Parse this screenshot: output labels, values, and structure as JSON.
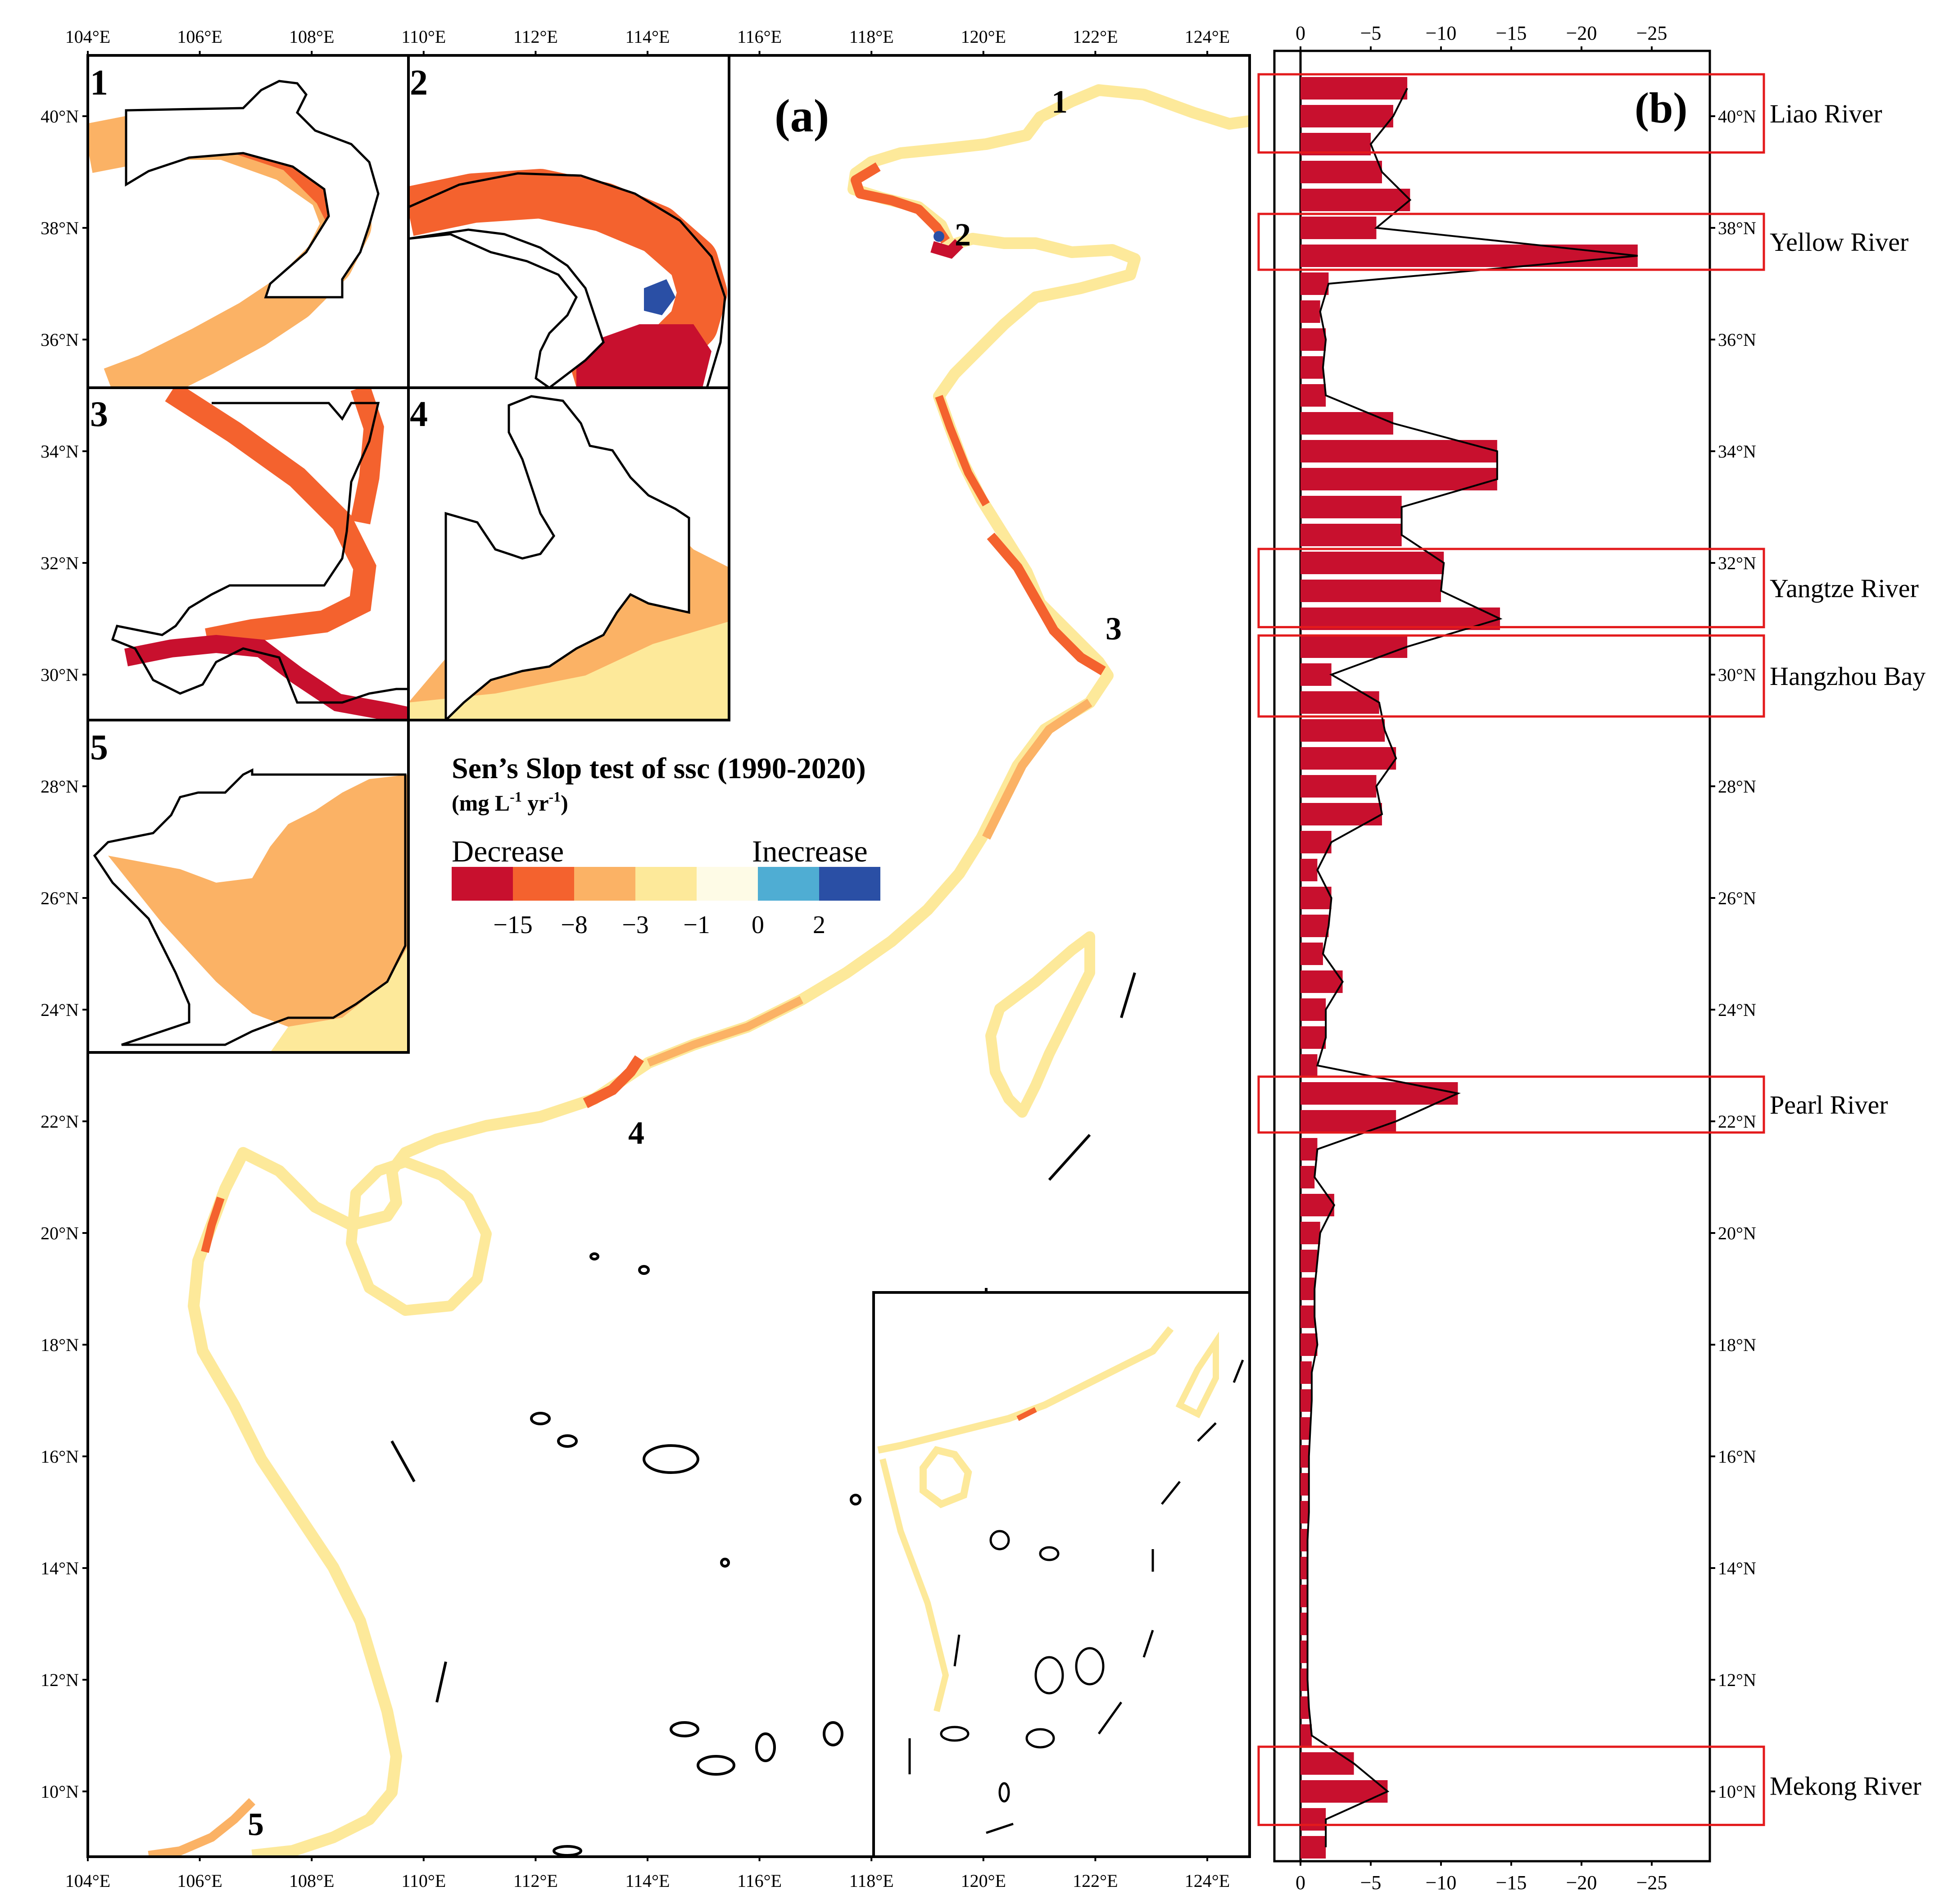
{
  "panel_a": {
    "label": "(a)",
    "lon_ticks": [
      "104°E",
      "106°E",
      "108°E",
      "110°E",
      "112°E",
      "114°E",
      "116°E",
      "118°E",
      "120°E",
      "122°E",
      "124°E"
    ],
    "lat_ticks": [
      "40°N",
      "38°N",
      "36°N",
      "34°N",
      "32°N",
      "30°N",
      "28°N",
      "26°N",
      "24°N",
      "22°N",
      "20°N",
      "18°N",
      "16°N",
      "14°N",
      "12°N",
      "10°N"
    ],
    "inset_numbers": [
      "1",
      "2",
      "3",
      "4",
      "5"
    ],
    "site_labels": [
      "1",
      "2",
      "3",
      "4",
      "5"
    ],
    "legend": {
      "title": "Sen’s Slop test of ssc (1990-2020)",
      "unit_prefix": "(mg L",
      "unit_sup1": "-1",
      "unit_mid": " yr",
      "unit_sup2": "-1",
      "unit_suffix": ")",
      "left_label": "Decrease",
      "right_label": "Inecrease",
      "ticks": [
        "−15",
        "−8",
        "−3",
        "−1",
        "0",
        "2"
      ],
      "colors": [
        "#c8102e",
        "#f4622e",
        "#fbb265",
        "#fde99a",
        "#fefbe6",
        "#4fadd3",
        "#2a4fa5"
      ]
    },
    "palette": {
      "strong_decrease": "#c8102e",
      "decrease": "#f4622e",
      "moderate": "#fbb265",
      "weak": "#fde99a",
      "neutral": "#fefbe6",
      "increase": "#4fadd3",
      "strong_increase": "#2a4fa5"
    }
  },
  "panel_b": {
    "label": "(b)",
    "x_ticks": [
      "0",
      "−5",
      "−10",
      "−15",
      "−20",
      "−25"
    ],
    "y_ticks": [
      "40°N",
      "38°N",
      "36°N",
      "34°N",
      "32°N",
      "30°N",
      "28°N",
      "26°N",
      "24°N",
      "22°N",
      "20°N",
      "18°N",
      "16°N",
      "14°N",
      "12°N",
      "10°N"
    ],
    "bar_color": "#c8102e",
    "box_color": "#e31a1c",
    "regions": [
      {
        "name": "Liao River",
        "lat_top": 40.75,
        "lat_bottom": 39.35
      },
      {
        "name": "Yellow River",
        "lat_top": 38.25,
        "lat_bottom": 37.25
      },
      {
        "name": "Yangtze River",
        "lat_top": 32.25,
        "lat_bottom": 30.85
      },
      {
        "name": "Hangzhou Bay",
        "lat_top": 30.7,
        "lat_bottom": 29.25
      },
      {
        "name": "Pearl River",
        "lat_top": 22.8,
        "lat_bottom": 21.8
      },
      {
        "name": "Mekong River",
        "lat_top": 10.8,
        "lat_bottom": 9.4
      }
    ]
  },
  "chart_data": {
    "type": "bar",
    "orientation": "horizontal",
    "y_axis": "latitude (°N)",
    "ylim": [
      8.8,
      41.2
    ],
    "xlim": [
      0,
      -27
    ],
    "lat": [
      40.5,
      40.0,
      39.5,
      39.0,
      38.5,
      38.0,
      37.5,
      37.0,
      36.5,
      36.0,
      35.5,
      35.0,
      34.5,
      34.0,
      33.5,
      33.0,
      32.5,
      32.0,
      31.5,
      31.0,
      30.5,
      30.0,
      29.5,
      29.0,
      28.5,
      28.0,
      27.5,
      27.0,
      26.5,
      26.0,
      25.5,
      25.0,
      24.5,
      24.0,
      23.5,
      23.0,
      22.5,
      22.0,
      21.5,
      21.0,
      20.5,
      20.0,
      19.5,
      19.0,
      18.5,
      18.0,
      17.5,
      17.0,
      16.5,
      16.0,
      15.5,
      15.0,
      14.5,
      14.0,
      13.5,
      13.0,
      12.5,
      12.0,
      11.5,
      11.0,
      10.5,
      10.0,
      9.5,
      9.0
    ],
    "values": [
      -7.6,
      -6.6,
      -5.0,
      -5.8,
      -7.8,
      -5.4,
      -24.0,
      -2.0,
      -1.4,
      -1.8,
      -1.6,
      -1.8,
      -6.6,
      -14.0,
      -14.0,
      -7.2,
      -7.2,
      -10.2,
      -10.0,
      -14.2,
      -7.6,
      -2.2,
      -5.6,
      -6.0,
      -6.8,
      -5.4,
      -5.8,
      -2.2,
      -1.2,
      -2.2,
      -2.0,
      -1.6,
      -3.0,
      -1.8,
      -1.8,
      -1.2,
      -11.2,
      -6.8,
      -1.2,
      -1.0,
      -2.4,
      -1.4,
      -1.2,
      -1.0,
      -1.0,
      -1.2,
      -0.8,
      -0.8,
      -0.7,
      -0.6,
      -0.6,
      -0.6,
      -0.5,
      -0.5,
      -0.5,
      -0.5,
      -0.5,
      -0.5,
      -0.6,
      -0.8,
      -3.8,
      -6.2,
      -1.8,
      -1.8
    ]
  }
}
